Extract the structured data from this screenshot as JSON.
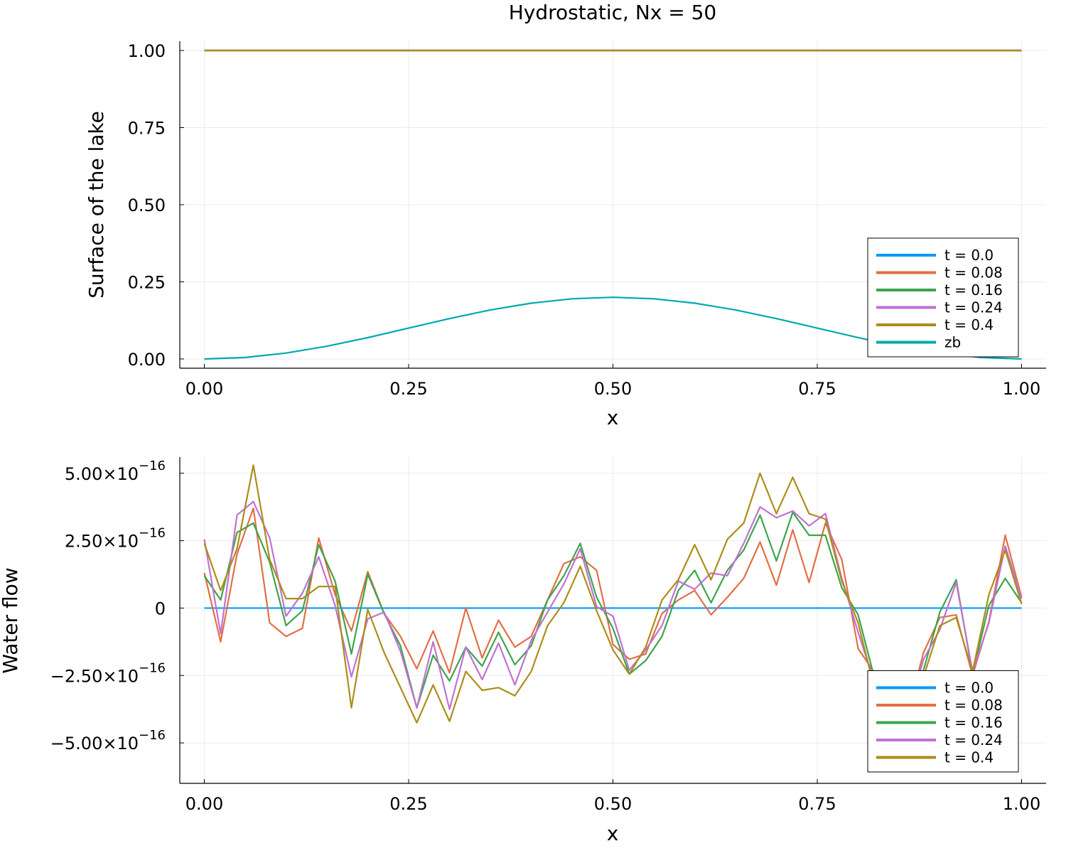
{
  "colors": {
    "t0": "#009AFA",
    "t008": "#E26F46",
    "t016": "#3DA44D",
    "t024": "#C271D2",
    "t04": "#AC8D18",
    "zb": "#00A9AD",
    "grid": "#EBEBEB",
    "axis": "#000000"
  },
  "chart_data": [
    {
      "type": "line",
      "title": "Hydrostatic, Nx = 50",
      "xlabel": "x",
      "ylabel": "Surface of the lake",
      "xlim": [
        -0.03,
        1.03
      ],
      "ylim": [
        -0.03,
        1.03
      ],
      "xticks": [
        0.0,
        0.25,
        0.5,
        0.75,
        1.0
      ],
      "xtick_labels": [
        "0.00",
        "0.25",
        "0.50",
        "0.75",
        "1.00"
      ],
      "yticks": [
        0.0,
        0.25,
        0.5,
        0.75,
        1.0
      ],
      "ytick_labels": [
        "0.00",
        "0.25",
        "0.50",
        "0.75",
        "1.00"
      ],
      "grid": true,
      "legend_position": "bottom-right",
      "series": [
        {
          "name": "t = 0.0",
          "x": [
            0.0,
            1.0
          ],
          "y": [
            1.0,
            1.0
          ]
        },
        {
          "name": "t = 0.08",
          "x": [
            0.0,
            1.0
          ],
          "y": [
            1.0,
            1.0
          ]
        },
        {
          "name": "t = 0.16",
          "x": [
            0.0,
            1.0
          ],
          "y": [
            1.0,
            1.0
          ]
        },
        {
          "name": "t = 0.24",
          "x": [
            0.0,
            1.0
          ],
          "y": [
            1.0,
            1.0
          ]
        },
        {
          "name": "t = 0.4",
          "x": [
            0.0,
            1.0
          ],
          "y": [
            1.0,
            1.0
          ]
        },
        {
          "name": "zb",
          "x": [
            0.0,
            0.05,
            0.1,
            0.15,
            0.2,
            0.25,
            0.3,
            0.35,
            0.4,
            0.45,
            0.5,
            0.55,
            0.6,
            0.65,
            0.7,
            0.75,
            0.8,
            0.85,
            0.9,
            0.95,
            1.0
          ],
          "y": [
            0.0,
            0.0049,
            0.0191,
            0.0412,
            0.0691,
            0.1,
            0.1309,
            0.1588,
            0.1809,
            0.1951,
            0.2,
            0.1951,
            0.1809,
            0.1588,
            0.1309,
            0.1,
            0.0691,
            0.0412,
            0.0191,
            0.0049,
            0.0
          ]
        }
      ]
    },
    {
      "type": "line",
      "title": "",
      "xlabel": "x",
      "ylabel": "Water flow",
      "xlim": [
        -0.03,
        1.03
      ],
      "ylim": [
        -6.5e-16,
        5.6e-16
      ],
      "xticks": [
        0.0,
        0.25,
        0.5,
        0.75,
        1.0
      ],
      "xtick_labels": [
        "0.00",
        "0.25",
        "0.50",
        "0.75",
        "1.00"
      ],
      "yticks": [
        5e-16,
        2.5e-16,
        0,
        -2.5e-16,
        -5e-16
      ],
      "ytick_labels": [
        {
          "mant": "5.00×10",
          "exp": "−16"
        },
        {
          "mant": "2.50×10",
          "exp": "−16"
        },
        {
          "mant": "0",
          "exp": ""
        },
        {
          "mant": "−2.50×10",
          "exp": "−16"
        },
        {
          "mant": "−5.00×10",
          "exp": "−16"
        }
      ],
      "y_scale": 1e-16,
      "grid": true,
      "legend_position": "bottom-right",
      "x": [
        0.0,
        0.02,
        0.04,
        0.06,
        0.08,
        0.1,
        0.12,
        0.14,
        0.16,
        0.18,
        0.2,
        0.22,
        0.24,
        0.26,
        0.28,
        0.3,
        0.32,
        0.34,
        0.36,
        0.38,
        0.4,
        0.42,
        0.44,
        0.46,
        0.48,
        0.5,
        0.52,
        0.54,
        0.56,
        0.58,
        0.6,
        0.62,
        0.64,
        0.66,
        0.68,
        0.7,
        0.72,
        0.74,
        0.76,
        0.78,
        0.8,
        0.82,
        0.84,
        0.86,
        0.88,
        0.9,
        0.92,
        0.94,
        0.96,
        0.98,
        1.0
      ],
      "series": [
        {
          "name": "t = 0.0",
          "values": [
            0,
            0,
            0,
            0,
            0,
            0,
            0,
            0,
            0,
            0,
            0,
            0,
            0,
            0,
            0,
            0,
            0,
            0,
            0,
            0,
            0,
            0,
            0,
            0,
            0,
            0,
            0,
            0,
            0,
            0,
            0,
            0,
            0,
            0,
            0,
            0,
            0,
            0,
            0,
            0,
            0,
            0,
            0,
            0,
            0,
            0,
            0,
            0,
            0,
            0,
            0
          ]
        },
        {
          "name": "t = 0.08",
          "values": [
            1.3,
            -1.25,
            2.0,
            3.7,
            -0.55,
            -1.05,
            -0.75,
            2.6,
            0.5,
            -0.85,
            1.35,
            -0.2,
            -1.05,
            -2.25,
            -0.85,
            -2.4,
            0.0,
            -1.85,
            -0.45,
            -1.45,
            -1.05,
            0.3,
            1.65,
            1.9,
            1.4,
            -1.35,
            -1.9,
            -1.7,
            -0.2,
            0.3,
            0.65,
            -0.25,
            0.4,
            1.1,
            2.45,
            0.85,
            2.9,
            0.95,
            3.15,
            1.8,
            -1.5,
            -2.4,
            -3.5,
            -4.0,
            -1.65,
            -0.35,
            -0.25,
            -2.5,
            -0.5,
            2.7,
            0.4
          ]
        },
        {
          "name": "t = 0.16",
          "values": [
            1.2,
            0.3,
            2.8,
            3.15,
            1.7,
            -0.65,
            -0.1,
            2.35,
            1.0,
            -1.7,
            1.25,
            -0.2,
            -1.4,
            -3.7,
            -1.75,
            -2.7,
            -1.45,
            -2.15,
            -0.9,
            -2.1,
            -1.4,
            0.3,
            1.2,
            2.4,
            0.4,
            -0.75,
            -2.45,
            -1.95,
            -1.05,
            0.65,
            1.4,
            0.2,
            1.4,
            2.15,
            3.45,
            1.75,
            3.55,
            2.7,
            2.7,
            0.75,
            -0.25,
            -2.6,
            -3.4,
            -3.6,
            -2.3,
            -0.15,
            1.05,
            -2.45,
            0.1,
            1.1,
            0.2
          ]
        },
        {
          "name": "t = 0.24",
          "values": [
            2.55,
            -0.95,
            3.45,
            3.95,
            2.6,
            -0.3,
            0.55,
            1.9,
            0.1,
            -2.55,
            -0.4,
            -0.15,
            -1.6,
            -3.7,
            -1.25,
            -3.75,
            -1.45,
            -2.65,
            -1.3,
            -2.85,
            -1.2,
            -0.15,
            0.9,
            2.2,
            0.05,
            -0.3,
            -2.3,
            -1.55,
            -0.65,
            1.0,
            0.7,
            1.3,
            1.2,
            2.4,
            3.75,
            3.35,
            3.6,
            3.05,
            3.5,
            1.1,
            -0.9,
            -2.75,
            -3.55,
            -4.05,
            -1.9,
            -0.8,
            0.95,
            -2.35,
            -0.55,
            2.3,
            0.35
          ]
        },
        {
          "name": "t = 0.4",
          "values": [
            2.4,
            0.65,
            2.2,
            5.3,
            1.8,
            0.35,
            0.35,
            0.8,
            0.8,
            -3.7,
            -0.05,
            -1.65,
            -2.95,
            -4.25,
            -2.85,
            -4.2,
            -2.35,
            -3.05,
            -2.95,
            -3.25,
            -2.35,
            -0.65,
            0.2,
            1.55,
            -0.1,
            -1.55,
            -2.45,
            -1.45,
            0.3,
            1.05,
            2.35,
            1.05,
            2.55,
            3.15,
            5.0,
            3.5,
            4.85,
            3.5,
            3.3,
            1.0,
            -0.55,
            -3.0,
            -3.7,
            -5.6,
            -2.55,
            -0.65,
            -0.35,
            -2.35,
            0.5,
            2.15,
            0.15
          ]
        }
      ]
    }
  ]
}
